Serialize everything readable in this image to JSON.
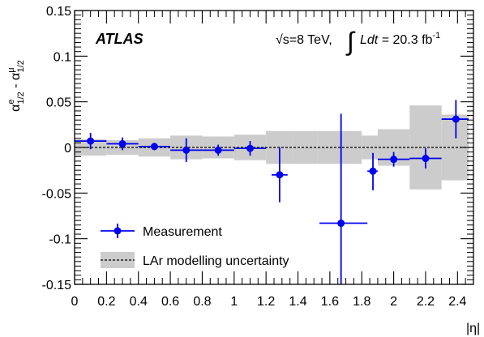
{
  "chart_data": {
    "type": "scatter",
    "experiment": "ATLAS",
    "energy_label": "√s=8 TeV,",
    "lumi_label_italic": "Ldt",
    "lumi_label_value": "= 20.3 fb",
    "lumi_label_exp": "-1",
    "xlabel": "|η|",
    "ylabel": {
      "alpha_left": "α",
      "sup_left": "e",
      "sub_left": "1/2",
      "minus": " - ",
      "alpha_right": "α",
      "sup_right": "μ",
      "sub_right": "1/2"
    },
    "xlim": [
      0,
      2.5
    ],
    "ylim": [
      -0.15,
      0.15
    ],
    "x_ticks": [
      0,
      0.2,
      0.4,
      0.6,
      0.8,
      1,
      1.2,
      1.4,
      1.6,
      1.8,
      2,
      2.2,
      2.4
    ],
    "x_tick_labels": [
      "0",
      "0.2",
      "0.4",
      "0.6",
      "0.8",
      "1",
      "1.2",
      "1.4",
      "1.6",
      "1.8",
      "2",
      "2.2",
      "2.4"
    ],
    "y_ticks": [
      -0.15,
      -0.1,
      -0.05,
      0,
      0.05,
      0.1,
      0.15
    ],
    "y_tick_labels": [
      "-0.15",
      "-0.1",
      "-0.05",
      "0",
      "0.05",
      "0.1",
      "0.15"
    ],
    "reference_line_y": 0,
    "legend": {
      "position": "bottom-left",
      "measurement": "Measurement",
      "band": "LAr modelling uncertainty"
    },
    "colors": {
      "measurement": "#0000ee",
      "band": "#cccccc",
      "reference": "#000000"
    },
    "measurement": [
      {
        "x": 0.1,
        "xlo": 0.0,
        "xhi": 0.2,
        "y": 0.007,
        "ylo": -0.002,
        "yhi": 0.016
      },
      {
        "x": 0.3,
        "xlo": 0.2,
        "xhi": 0.4,
        "y": 0.004,
        "ylo": -0.003,
        "yhi": 0.011
      },
      {
        "x": 0.5,
        "xlo": 0.4,
        "xhi": 0.6,
        "y": 0.001,
        "ylo": -0.003,
        "yhi": 0.005
      },
      {
        "x": 0.7,
        "xlo": 0.6,
        "xhi": 0.8,
        "y": -0.003,
        "ylo": -0.016,
        "yhi": 0.01
      },
      {
        "x": 0.9,
        "xlo": 0.8,
        "xhi": 1.0,
        "y": -0.003,
        "ylo": -0.009,
        "yhi": 0.003
      },
      {
        "x": 1.1,
        "xlo": 1.0,
        "xhi": 1.2,
        "y": -0.001,
        "ylo": -0.009,
        "yhi": 0.007
      },
      {
        "x": 1.285,
        "xlo": 1.235,
        "xhi": 1.335,
        "y": -0.03,
        "ylo": -0.06,
        "yhi": 0.0
      },
      {
        "x": 1.67,
        "xlo": 1.535,
        "xhi": 1.835,
        "y": -0.083,
        "ylo": -0.15,
        "yhi": 0.037
      },
      {
        "x": 1.87,
        "xlo": 1.835,
        "xhi": 1.9,
        "y": -0.026,
        "ylo": -0.047,
        "yhi": -0.006
      },
      {
        "x": 2.0,
        "xlo": 1.9,
        "xhi": 2.1,
        "y": -0.013,
        "ylo": -0.021,
        "yhi": -0.005
      },
      {
        "x": 2.2,
        "xlo": 2.1,
        "xhi": 2.3,
        "y": -0.012,
        "ylo": -0.023,
        "yhi": -0.001
      },
      {
        "x": 2.39,
        "xlo": 2.3,
        "xhi": 2.47,
        "y": 0.031,
        "ylo": 0.01,
        "yhi": 0.052
      }
    ],
    "lar_band": [
      {
        "xlo": 0.0,
        "xhi": 0.2,
        "half_width": 0.009
      },
      {
        "xlo": 0.2,
        "xhi": 0.4,
        "half_width": 0.008
      },
      {
        "xlo": 0.4,
        "xhi": 0.6,
        "half_width": 0.01
      },
      {
        "xlo": 0.6,
        "xhi": 0.8,
        "half_width": 0.013
      },
      {
        "xlo": 0.8,
        "xhi": 1.0,
        "half_width": 0.012
      },
      {
        "xlo": 1.0,
        "xhi": 1.2,
        "half_width": 0.014
      },
      {
        "xlo": 1.2,
        "xhi": 1.37,
        "half_width": 0.018
      },
      {
        "xlo": 1.37,
        "xhi": 1.52,
        "half_width": 0.018
      },
      {
        "xlo": 1.52,
        "xhi": 1.8,
        "half_width": 0.018
      },
      {
        "xlo": 1.8,
        "xhi": 1.9,
        "half_width": 0.013
      },
      {
        "xlo": 1.9,
        "xhi": 2.1,
        "half_width": 0.02
      },
      {
        "xlo": 2.1,
        "xhi": 2.3,
        "half_width": 0.046
      },
      {
        "xlo": 2.3,
        "xhi": 2.47,
        "half_width": 0.036
      }
    ]
  }
}
